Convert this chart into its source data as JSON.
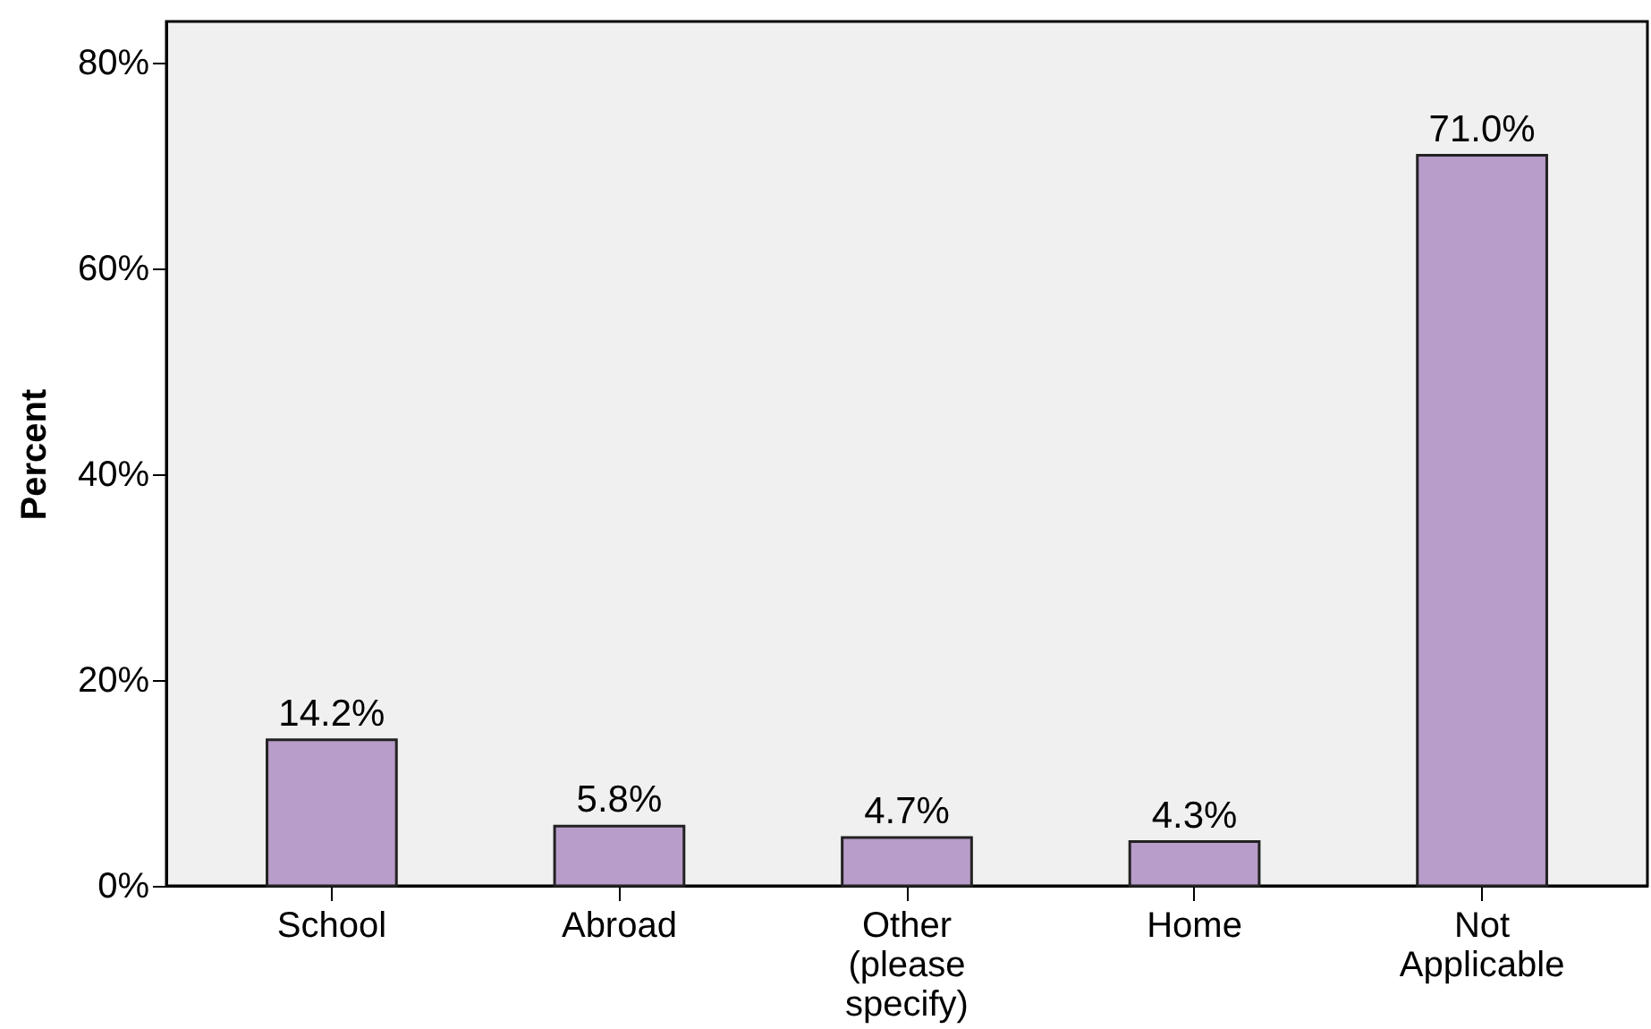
{
  "chart_data": {
    "type": "bar",
    "ylabel": "Percent",
    "categories": [
      "School",
      "Abroad",
      "Other (please specify)",
      "Home",
      "Not Applicable"
    ],
    "values": [
      14.2,
      5.8,
      4.7,
      4.3,
      71.0
    ],
    "value_labels": [
      "14.2%",
      "5.8%",
      "4.7%",
      "4.3%",
      "71.0%"
    ],
    "color": "#b89cc9",
    "ylim": [
      0,
      84
    ],
    "yticks": [
      {
        "value": 0,
        "label": "0%"
      },
      {
        "value": 20,
        "label": "20%"
      },
      {
        "value": 40,
        "label": "40%"
      },
      {
        "value": 60,
        "label": "60%"
      },
      {
        "value": 80,
        "label": "80%"
      }
    ],
    "grid": false
  }
}
